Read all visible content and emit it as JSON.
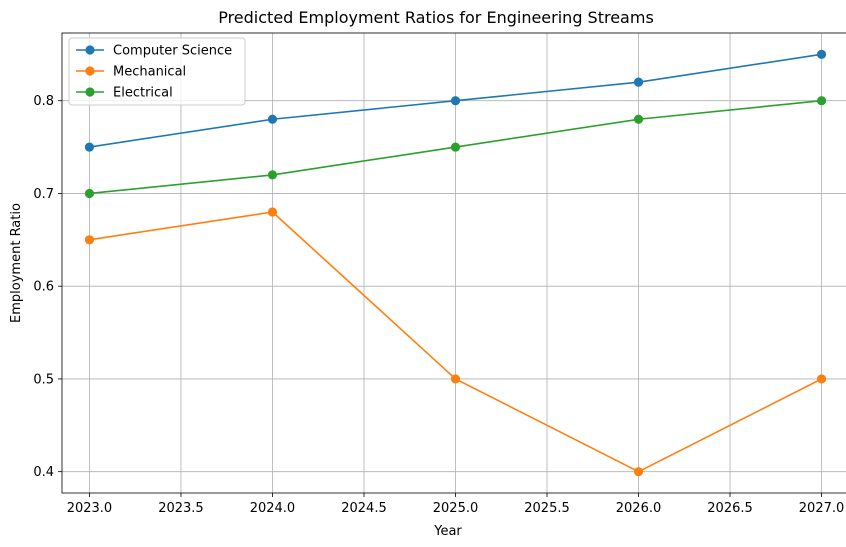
{
  "chart_data": {
    "type": "line",
    "title": "Predicted Employment Ratios for Engineering Streams",
    "xlabel": "Year",
    "ylabel": "Employment Ratio",
    "xlim": [
      2022.85,
      2027.15
    ],
    "ylim": [
      0.377,
      0.873
    ],
    "x_ticks": [
      "2023.0",
      "2023.5",
      "2024.0",
      "2024.5",
      "2025.0",
      "2025.5",
      "2026.0",
      "2026.5",
      "2027.0"
    ],
    "y_ticks": [
      "0.4",
      "0.5",
      "0.6",
      "0.7",
      "0.8"
    ],
    "grid": true,
    "legend_position": "upper-left",
    "marker": "circle",
    "x": [
      2023,
      2024,
      2025,
      2026,
      2027
    ],
    "series": [
      {
        "name": "Computer Science",
        "color": "#1f77b4",
        "values": [
          0.75,
          0.78,
          0.8,
          0.82,
          0.85
        ]
      },
      {
        "name": "Mechanical",
        "color": "#ff7f0e",
        "values": [
          0.65,
          0.68,
          0.5,
          0.4,
          0.5
        ]
      },
      {
        "name": "Electrical",
        "color": "#2ca02c",
        "values": [
          0.7,
          0.72,
          0.75,
          0.78,
          0.8
        ]
      }
    ]
  }
}
